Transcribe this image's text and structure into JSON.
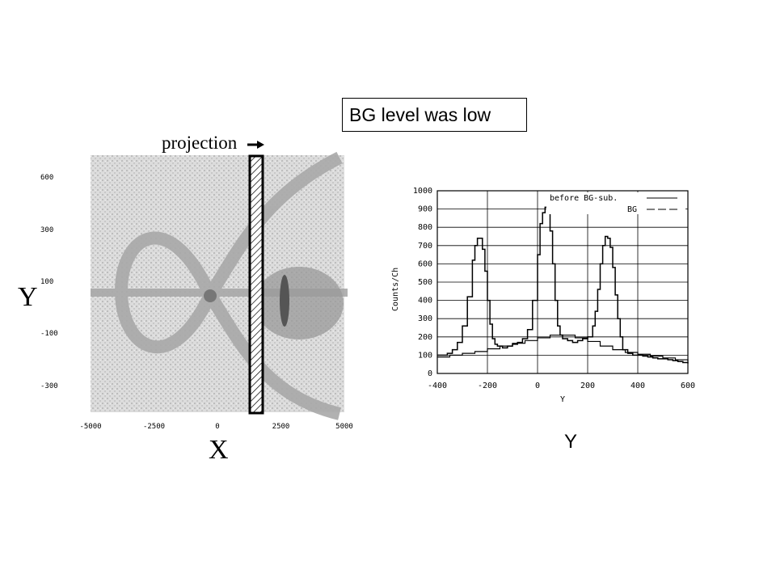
{
  "callout_text": "BG level was low",
  "bottom_axis_label": "Y",
  "chart_data": [
    {
      "type": "heatmap",
      "projection_label": "projection",
      "xlabel": "X",
      "ylabel": "Y",
      "x_ticks": [
        "-5000",
        "-2500",
        "0",
        "2500",
        "5000"
      ],
      "y_ticks": [
        "600",
        "300",
        "100",
        "-100",
        "-300"
      ],
      "xlim": [
        -5000,
        5000
      ],
      "ylim": [
        -500,
        700
      ],
      "projection_band_x": [
        1500,
        2300
      ]
    },
    {
      "type": "line",
      "xlabel": "Y",
      "ylabel": "Counts/Ch",
      "xlim": [
        -400,
        600
      ],
      "ylim": [
        0,
        1000
      ],
      "x_ticks": [
        "-400",
        "-200",
        "0",
        "200",
        "400",
        "600"
      ],
      "y_ticks": [
        "0",
        "100",
        "200",
        "300",
        "400",
        "500",
        "600",
        "700",
        "800",
        "900",
        "1000"
      ],
      "grid": true,
      "legend_position": "top-right",
      "series": [
        {
          "name": "before BG-sub.",
          "x": [
            -400,
            -380,
            -360,
            -340,
            -320,
            -300,
            -280,
            -260,
            -250,
            -240,
            -230,
            -220,
            -210,
            -200,
            -190,
            -180,
            -170,
            -160,
            -140,
            -120,
            -100,
            -80,
            -60,
            -40,
            -20,
            0,
            10,
            20,
            30,
            40,
            50,
            60,
            70,
            80,
            90,
            100,
            120,
            140,
            160,
            180,
            200,
            220,
            230,
            240,
            250,
            260,
            270,
            280,
            290,
            300,
            310,
            320,
            330,
            340,
            360,
            380,
            400,
            420,
            440,
            460,
            480,
            500,
            520,
            540,
            560,
            580,
            600
          ],
          "values": [
            100,
            100,
            110,
            130,
            170,
            260,
            420,
            620,
            700,
            740,
            740,
            680,
            560,
            400,
            270,
            190,
            160,
            150,
            140,
            150,
            160,
            170,
            190,
            240,
            400,
            650,
            820,
            880,
            910,
            880,
            780,
            600,
            400,
            260,
            210,
            190,
            180,
            170,
            180,
            190,
            200,
            260,
            340,
            460,
            600,
            700,
            750,
            740,
            690,
            580,
            430,
            300,
            200,
            130,
            110,
            100,
            100,
            95,
            90,
            85,
            80,
            80,
            75,
            70,
            65,
            60,
            55
          ]
        },
        {
          "name": "BG",
          "x": [
            -400,
            -350,
            -300,
            -250,
            -200,
            -150,
            -100,
            -50,
            0,
            50,
            100,
            150,
            200,
            250,
            300,
            350,
            400,
            450,
            500,
            550,
            600
          ],
          "values": [
            90,
            100,
            110,
            120,
            135,
            150,
            165,
            180,
            195,
            210,
            210,
            195,
            175,
            150,
            130,
            115,
            105,
            95,
            85,
            75,
            65
          ]
        }
      ]
    }
  ]
}
